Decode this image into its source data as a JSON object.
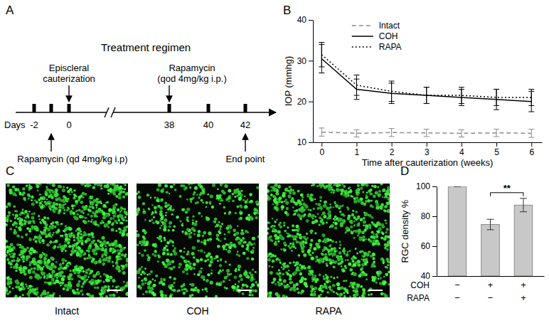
{
  "panels": [
    "A",
    "B",
    "C",
    "D"
  ],
  "timeline": {
    "title": "Treatment regimen",
    "axis_label": "Days",
    "ticks": [
      "-2",
      null,
      "0",
      "38",
      "40",
      "42"
    ],
    "events": [
      {
        "side": "above",
        "lines": [
          "Episcleral",
          "cauterization"
        ]
      },
      {
        "side": "above",
        "lines": [
          "Rapamycin",
          "(qod 4mg/kg i.p.)"
        ]
      },
      {
        "side": "below",
        "lines": [
          "Rapamycin (qd 4mg/kg i.p)"
        ]
      },
      {
        "side": "below",
        "lines": [
          "End point"
        ]
      }
    ]
  },
  "images": {
    "labels": [
      "Intact",
      "COH",
      "RAPA"
    ]
  },
  "chart_data": [
    {
      "type": "line",
      "xlabel": "Time after cauterization (weeks)",
      "ylabel": "IOP (mmhg)",
      "x": [
        0,
        1,
        2,
        3,
        4,
        5,
        6
      ],
      "xlim": [
        -0.25,
        6.3
      ],
      "xticks": [
        0,
        1,
        2,
        3,
        4,
        5,
        6
      ],
      "ylim": [
        10,
        40
      ],
      "yticks": [
        10,
        20,
        30,
        40
      ],
      "legend": "upper center",
      "series": [
        {
          "name": "Intact",
          "color": "#8c8c8c",
          "line_style": "dashed",
          "values": [
            12.5,
            12.2,
            12.4,
            12.3,
            12.2,
            12.3,
            12.2
          ],
          "errors": [
            1.0,
            0.9,
            1.0,
            0.9,
            0.9,
            0.9,
            1.0
          ]
        },
        {
          "name": "COH",
          "color": "#000000",
          "line_style": "solid",
          "values": [
            30.5,
            23.0,
            22.0,
            21.5,
            21.0,
            20.5,
            20.0
          ],
          "errors": [
            3.5,
            2.5,
            2.5,
            2.0,
            2.0,
            2.5,
            2.5
          ]
        },
        {
          "name": "RAPA",
          "color": "#000000",
          "line_style": "dotted",
          "values": [
            31.5,
            24.0,
            22.5,
            21.5,
            21.5,
            21.0,
            21.0
          ],
          "errors": [
            3.0,
            2.5,
            2.5,
            2.0,
            2.0,
            2.0,
            2.0
          ]
        }
      ]
    },
    {
      "type": "bar",
      "ylabel": "RGC density %",
      "categories": [
        null,
        null,
        null
      ],
      "values": [
        100,
        74.5,
        87.5
      ],
      "errors": [
        0,
        3.5,
        4.5
      ],
      "color": "#c8c8c8",
      "ylim": [
        40,
        100
      ],
      "yticks": [
        40,
        60,
        80,
        100
      ],
      "condition_table": {
        "labels": [
          "COH",
          "RAPA"
        ],
        "rows": [
          [
            "−",
            "+",
            "+"
          ],
          [
            "−",
            "−",
            "+"
          ]
        ]
      },
      "annotations": [
        {
          "text": "**",
          "between": [
            1,
            2
          ]
        }
      ]
    }
  ]
}
